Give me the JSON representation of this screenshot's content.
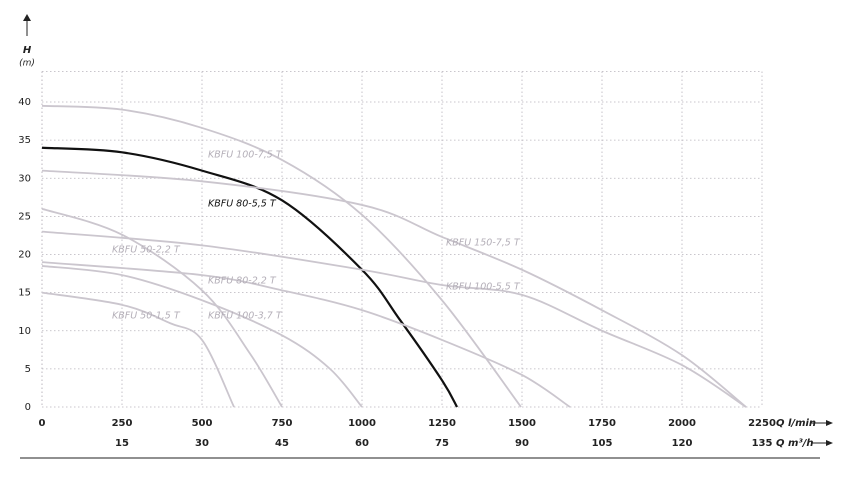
{
  "chart_data": {
    "type": "line",
    "ylabel": "H",
    "yunit": "(m)",
    "xlabel": "Q l/min",
    "x2label": "Q m³/h",
    "xlim": [
      0,
      2250
    ],
    "xticks": [
      0,
      250,
      500,
      750,
      1000,
      1250,
      1500,
      1750,
      2000,
      2250
    ],
    "x2lim": [
      0,
      135
    ],
    "x2ticks": [
      15,
      30,
      45,
      60,
      75,
      90,
      105,
      120,
      135
    ],
    "ylim": [
      0,
      44
    ],
    "yticks": [
      0,
      5,
      10,
      15,
      20,
      25,
      30,
      35,
      40
    ],
    "grid": true,
    "series": [
      {
        "name": "KBFU 100-7,5 T",
        "color": "#cbc6ce",
        "x": [
          0,
          250,
          500,
          750,
          1000,
          1250,
          1497
        ],
        "values": [
          39.5,
          39,
          36.6,
          32.4,
          25.2,
          14,
          0
        ]
      },
      {
        "name": "KBFU 80-5,5 T",
        "color": "#111111",
        "x": [
          0,
          250,
          500,
          750,
          1000,
          1119,
          1250,
          1297
        ],
        "values": [
          34,
          33.4,
          31,
          27.1,
          18,
          11.4,
          3.5,
          0
        ]
      },
      {
        "name": "KBFU 150-7,5 T",
        "color": "#cbc6ce",
        "x": [
          0,
          500,
          1000,
          1250,
          1500,
          1750,
          2000,
          2200
        ],
        "values": [
          31,
          29.6,
          26.5,
          22.3,
          18,
          12.7,
          6.8,
          0
        ]
      },
      {
        "name": "KBFU 100-5,5 T",
        "color": "#cbc6ce",
        "x": [
          0,
          500,
          1000,
          1250,
          1500,
          1750,
          2000,
          2200
        ],
        "values": [
          23,
          21.2,
          18,
          16,
          14.7,
          10,
          5.5,
          0
        ]
      },
      {
        "name": "KBFU 50-2,2 T",
        "color": "#cbc6ce",
        "x": [
          0,
          250,
          500,
          650,
          750
        ],
        "values": [
          26,
          22.6,
          15.3,
          7,
          0
        ]
      },
      {
        "name": "KBFU 80-2,2 T",
        "color": "#cbc6ce",
        "x": [
          0,
          500,
          750,
          1000,
          1250,
          1500,
          1650
        ],
        "values": [
          19,
          17.3,
          15.3,
          12.7,
          8.8,
          4.2,
          0
        ]
      },
      {
        "name": "KBFU 100-3,7 T",
        "color": "#cbc6ce",
        "x": [
          0,
          250,
          500,
          750,
          900,
          1000
        ],
        "values": [
          18.5,
          17.3,
          14,
          9.4,
          5,
          0
        ]
      },
      {
        "name": "KBFU 50-1,5 T",
        "color": "#cbc6ce",
        "x": [
          0,
          250,
          400,
          500,
          600
        ],
        "values": [
          15,
          13.4,
          11,
          8.8,
          0
        ]
      }
    ]
  }
}
